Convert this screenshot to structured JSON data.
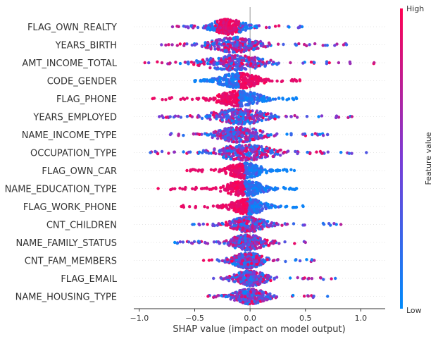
{
  "chart_data": {
    "type": "scatter",
    "subtype": "shap-beeswarm",
    "title": "",
    "xlabel": "SHAP value (impact on model output)",
    "xlim": [
      -1.05,
      1.22
    ],
    "xticks": [
      -1.0,
      -0.5,
      0.0,
      0.5,
      1.0
    ],
    "xtick_labels": [
      "−1.0",
      "−0.5",
      "0.0",
      "0.5",
      "1.0"
    ],
    "colorbar": {
      "label": "Feature value",
      "high_label": "High",
      "low_label": "Low",
      "high_color": "#ff0052",
      "low_color": "#008bfb"
    },
    "features": [
      {
        "name": "FLAG_OWN_REALTY",
        "min": -0.7,
        "max": 0.47,
        "width": 0.55,
        "center": -0.2,
        "spread": 0.17,
        "high_side": "center"
      },
      {
        "name": "YEARS_BIRTH",
        "min": -0.8,
        "max": 0.87,
        "width": 0.6,
        "center": -0.15,
        "spread": 0.25,
        "high_side": "mixed"
      },
      {
        "name": "AMT_INCOME_TOTAL",
        "min": -0.95,
        "max": 1.12,
        "width": 0.62,
        "center": -0.15,
        "spread": 0.3,
        "high_side": "mixed"
      },
      {
        "name": "CODE_GENDER",
        "min": -0.5,
        "max": 0.45,
        "width": 0.45,
        "center": -0.1,
        "spread": 0.2,
        "high_side": "right"
      },
      {
        "name": "FLAG_PHONE",
        "min": -0.88,
        "max": 0.42,
        "width": 0.45,
        "center": -0.1,
        "spread": 0.22,
        "high_side": "left"
      },
      {
        "name": "YEARS_EMPLOYED",
        "min": -0.82,
        "max": 0.92,
        "width": 0.5,
        "center": -0.1,
        "spread": 0.28,
        "high_side": "mixed"
      },
      {
        "name": "NAME_INCOME_TYPE",
        "min": -0.72,
        "max": 0.7,
        "width": 0.45,
        "center": -0.1,
        "spread": 0.22,
        "high_side": "mixed"
      },
      {
        "name": "OCCUPATION_TYPE",
        "min": -0.9,
        "max": 1.05,
        "width": 0.5,
        "center": -0.05,
        "spread": 0.3,
        "high_side": "mixed"
      },
      {
        "name": "FLAG_OWN_CAR",
        "min": -0.57,
        "max": 0.4,
        "width": 0.45,
        "center": -0.05,
        "spread": 0.17,
        "high_side": "left"
      },
      {
        "name": "NAME_EDUCATION_TYPE",
        "min": -0.83,
        "max": 0.42,
        "width": 0.4,
        "center": -0.05,
        "spread": 0.2,
        "high_side": "left"
      },
      {
        "name": "FLAG_WORK_PHONE",
        "min": -0.62,
        "max": 0.48,
        "width": 0.42,
        "center": -0.02,
        "spread": 0.17,
        "high_side": "left"
      },
      {
        "name": "CNT_CHILDREN",
        "min": -0.52,
        "max": 0.82,
        "width": 0.4,
        "center": -0.02,
        "spread": 0.17,
        "high_side": "mixed"
      },
      {
        "name": "NAME_FAMILY_STATUS",
        "min": -0.68,
        "max": 0.5,
        "width": 0.42,
        "center": -0.02,
        "spread": 0.18,
        "high_side": "mixed"
      },
      {
        "name": "CNT_FAM_MEMBERS",
        "min": -0.42,
        "max": 0.58,
        "width": 0.42,
        "center": -0.02,
        "spread": 0.16,
        "high_side": "mixed"
      },
      {
        "name": "FLAG_EMAIL",
        "min": -0.33,
        "max": 0.77,
        "width": 0.38,
        "center": 0.0,
        "spread": 0.16,
        "high_side": "mixed"
      },
      {
        "name": "NAME_HOUSING_TYPE",
        "min": -0.38,
        "max": 0.7,
        "width": 0.4,
        "center": 0.0,
        "spread": 0.16,
        "high_side": "mixed"
      }
    ]
  }
}
